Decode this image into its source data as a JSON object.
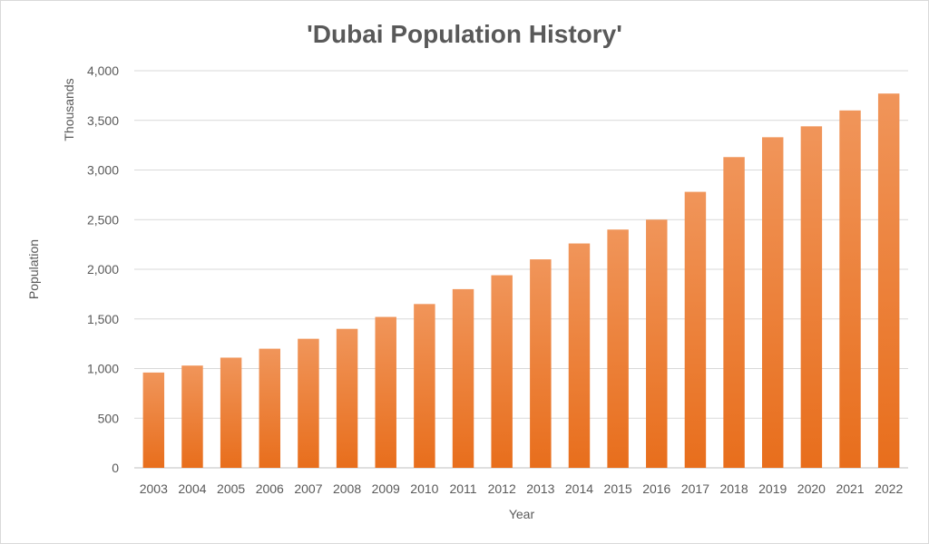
{
  "chart_data": {
    "type": "bar",
    "title": "'Dubai Population History'",
    "xlabel": "Year",
    "ylabel": "Population",
    "y_unit_label": "Thousands",
    "categories": [
      "2003",
      "2004",
      "2005",
      "2006",
      "2007",
      "2008",
      "2009",
      "2010",
      "2011",
      "2012",
      "2013",
      "2014",
      "2015",
      "2016",
      "2017",
      "2018",
      "2019",
      "2020",
      "2021",
      "2022"
    ],
    "values": [
      960,
      1030,
      1110,
      1200,
      1300,
      1400,
      1520,
      1650,
      1800,
      1940,
      2100,
      2260,
      2400,
      2500,
      2780,
      3130,
      3330,
      3440,
      3600,
      3770
    ],
    "ylim": [
      0,
      4000
    ],
    "y_ticks": [
      0,
      500,
      1000,
      1500,
      2000,
      2500,
      3000,
      3500,
      4000
    ],
    "y_tick_labels": [
      "0",
      "500",
      "1,000",
      "1,500",
      "2,000",
      "2,500",
      "3,000",
      "3,500",
      "4,000"
    ],
    "grid": true,
    "legend": "none",
    "colors": {
      "bar_top": "#f0955a",
      "bar_bottom": "#e86e1c",
      "grid": "#d9d9d9",
      "text": "#595959"
    }
  }
}
